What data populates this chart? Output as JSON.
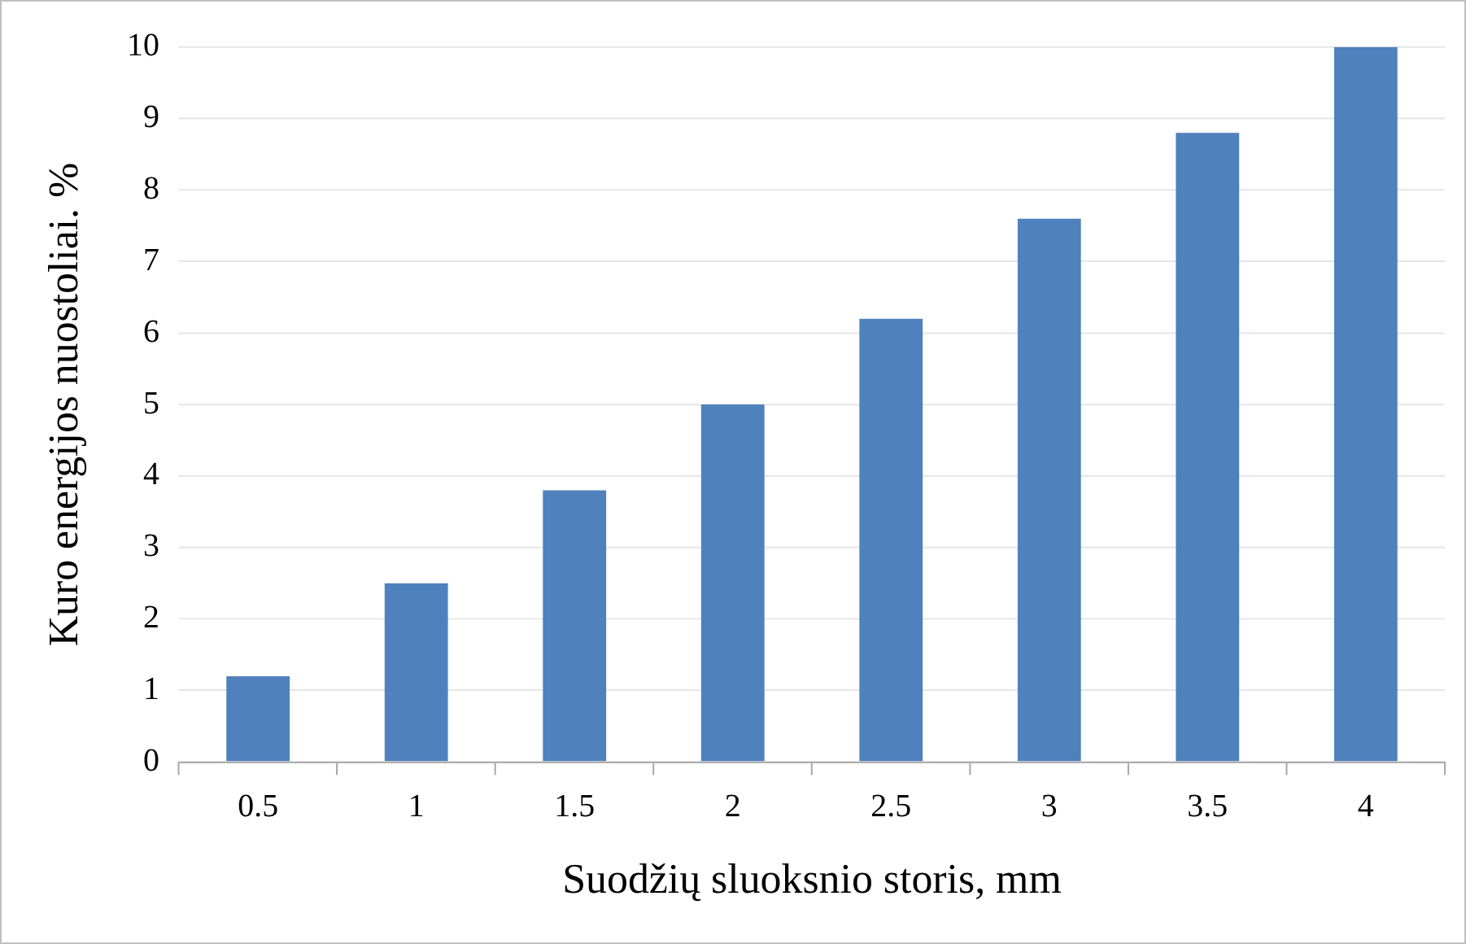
{
  "chart_data": {
    "type": "bar",
    "xlabel": "Suodžių sluoksnio storis, mm",
    "ylabel": "Kuro energijos nuostoliai. %",
    "categories": [
      "0.5",
      "1",
      "1.5",
      "2",
      "2.5",
      "3",
      "3.5",
      "4"
    ],
    "values": [
      1.2,
      2.5,
      3.8,
      5.0,
      6.2,
      7.6,
      8.8,
      10
    ],
    "color": "#4f81bd",
    "ylim": [
      0,
      10
    ],
    "yticks": [
      0,
      1,
      2,
      3,
      4,
      5,
      6,
      7,
      8,
      9,
      10
    ],
    "grid": "y"
  }
}
